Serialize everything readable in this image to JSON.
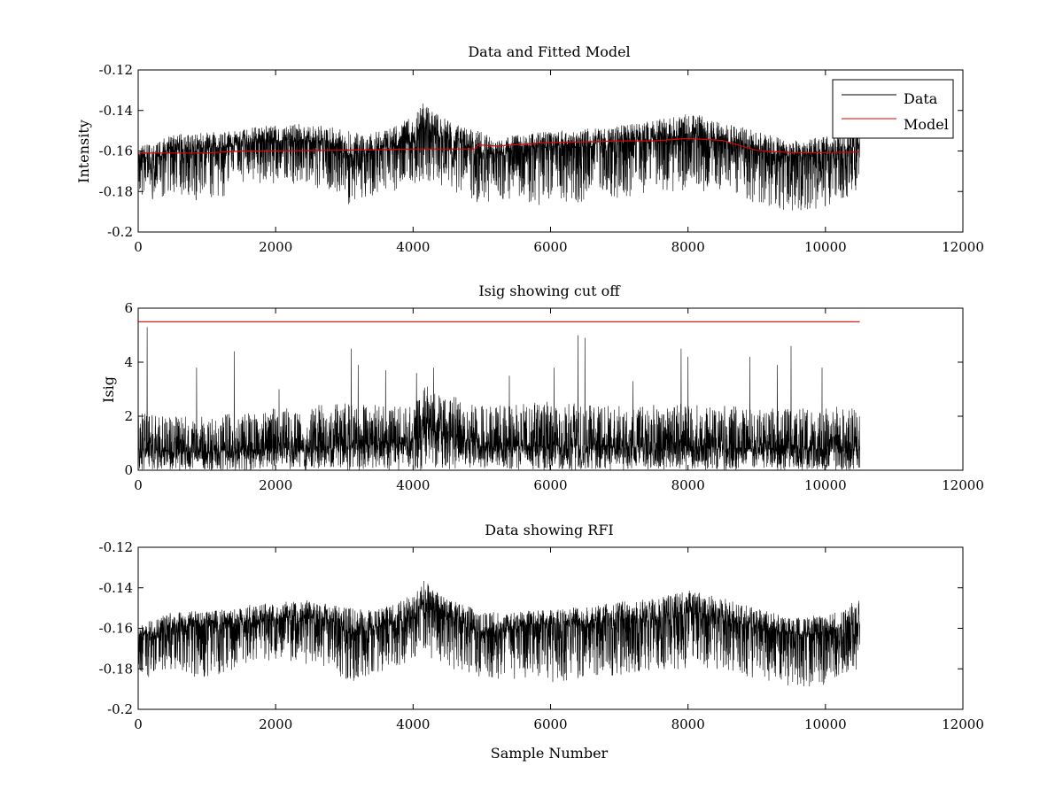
{
  "colors": {
    "data": "#000000",
    "model": "#e00000",
    "axes": "#000000",
    "background": "#ffffff"
  },
  "chart_data": [
    {
      "type": "line",
      "title": "Data and Fitted Model",
      "xlabel": "",
      "ylabel": "Intensity",
      "xlim": [
        0,
        12000
      ],
      "ylim": [
        -0.2,
        -0.12
      ],
      "y_reversed_tick_labels": true,
      "xticks": [
        0,
        2000,
        4000,
        6000,
        8000,
        10000,
        12000
      ],
      "yticks": [
        -0.2,
        -0.18,
        -0.16,
        -0.14,
        -0.12
      ],
      "xtick_labels": [
        "0",
        "2000",
        "4000",
        "6000",
        "8000",
        "10000",
        "12000"
      ],
      "ytick_labels": [
        "-0.2",
        "-0.18",
        "-0.16",
        "-0.14",
        "-0.12"
      ],
      "legend": {
        "position": "top-right",
        "entries": [
          "Data",
          "Model"
        ]
      },
      "series": [
        {
          "name": "Data",
          "kind": "noisy",
          "x_range": [
            0,
            10500
          ],
          "envelope": {
            "x": [
              0,
              200,
              500,
              900,
              1300,
              1700,
              2100,
              2500,
              2800,
              3100,
              3400,
              3700,
              4000,
              4150,
              4400,
              4700,
              4950,
              5300,
              5700,
              6100,
              6500,
              7000,
              7500,
              8000,
              8500,
              9000,
              9500,
              10000,
              10500
            ],
            "center": [
              -0.163,
              -0.164,
              -0.16,
              -0.159,
              -0.158,
              -0.156,
              -0.155,
              -0.155,
              -0.156,
              -0.163,
              -0.16,
              -0.157,
              -0.155,
              -0.148,
              -0.153,
              -0.156,
              -0.162,
              -0.161,
              -0.158,
              -0.158,
              -0.158,
              -0.156,
              -0.155,
              -0.152,
              -0.155,
              -0.16,
              -0.163,
              -0.162,
              -0.157
            ],
            "upper": [
              -0.158,
              -0.156,
              -0.152,
              -0.151,
              -0.15,
              -0.148,
              -0.147,
              -0.146,
              -0.148,
              -0.15,
              -0.151,
              -0.148,
              -0.143,
              -0.136,
              -0.143,
              -0.148,
              -0.15,
              -0.153,
              -0.151,
              -0.15,
              -0.149,
              -0.147,
              -0.145,
              -0.141,
              -0.145,
              -0.15,
              -0.155,
              -0.153,
              -0.145
            ],
            "lower": [
              -0.18,
              -0.186,
              -0.18,
              -0.185,
              -0.182,
              -0.176,
              -0.176,
              -0.178,
              -0.18,
              -0.188,
              -0.182,
              -0.18,
              -0.176,
              -0.175,
              -0.178,
              -0.182,
              -0.186,
              -0.185,
              -0.186,
              -0.188,
              -0.185,
              -0.183,
              -0.181,
              -0.18,
              -0.18,
              -0.186,
              -0.19,
              -0.188,
              -0.18
            ]
          }
        },
        {
          "name": "Model",
          "kind": "line",
          "x": [
            0,
            500,
            1000,
            1500,
            2000,
            2500,
            3000,
            3500,
            4000,
            4500,
            4900,
            4950,
            5200,
            5600,
            6000,
            6500,
            7000,
            7500,
            8000,
            8500,
            9000,
            9500,
            10000,
            10500
          ],
          "y": [
            -0.161,
            -0.161,
            -0.161,
            -0.16,
            -0.16,
            -0.1598,
            -0.1596,
            -0.1594,
            -0.159,
            -0.159,
            -0.159,
            -0.157,
            -0.1575,
            -0.1567,
            -0.1558,
            -0.1555,
            -0.155,
            -0.155,
            -0.1538,
            -0.1548,
            -0.1597,
            -0.1608,
            -0.1608,
            -0.1605
          ]
        }
      ]
    },
    {
      "type": "line",
      "title": "Isig showing cut off",
      "xlabel": "",
      "ylabel": "Isig",
      "xlim": [
        0,
        12000
      ],
      "ylim": [
        0,
        6
      ],
      "xticks": [
        0,
        2000,
        4000,
        6000,
        8000,
        10000,
        12000
      ],
      "yticks": [
        0,
        2,
        4,
        6
      ],
      "xtick_labels": [
        "0",
        "2000",
        "4000",
        "6000",
        "8000",
        "10000",
        "12000"
      ],
      "ytick_labels": [
        "0",
        "2",
        "4",
        "6"
      ],
      "series": [
        {
          "name": "Isig",
          "kind": "noisy",
          "x_range": [
            0,
            10500
          ],
          "envelope": {
            "x": [
              0,
              500,
              1000,
              2000,
              3000,
              4000,
              4200,
              5000,
              6000,
              7000,
              8000,
              9000,
              10000,
              10500
            ],
            "center": [
              0.8,
              0.7,
              0.7,
              0.8,
              0.9,
              1.0,
              1.6,
              0.9,
              0.9,
              0.9,
              0.9,
              0.8,
              0.8,
              0.9
            ],
            "upper": [
              2.2,
              2.0,
              2.0,
              2.3,
              2.5,
              2.4,
              3.2,
              2.4,
              2.6,
              2.4,
              2.5,
              2.3,
              2.3,
              2.5
            ],
            "lower": [
              0,
              0,
              0,
              0,
              0,
              0,
              0,
              0,
              0,
              0,
              0,
              0,
              0,
              0
            ]
          },
          "spikes": [
            {
              "x": 130,
              "y": 5.3
            },
            {
              "x": 850,
              "y": 3.8
            },
            {
              "x": 1400,
              "y": 4.4
            },
            {
              "x": 2050,
              "y": 3.0
            },
            {
              "x": 3100,
              "y": 4.5
            },
            {
              "x": 3200,
              "y": 3.9
            },
            {
              "x": 3600,
              "y": 3.7
            },
            {
              "x": 4050,
              "y": 3.6
            },
            {
              "x": 4300,
              "y": 3.8
            },
            {
              "x": 5400,
              "y": 3.5
            },
            {
              "x": 6050,
              "y": 3.8
            },
            {
              "x": 6400,
              "y": 5.0
            },
            {
              "x": 6500,
              "y": 4.9
            },
            {
              "x": 7200,
              "y": 3.3
            },
            {
              "x": 7900,
              "y": 4.5
            },
            {
              "x": 8000,
              "y": 4.2
            },
            {
              "x": 8900,
              "y": 4.2
            },
            {
              "x": 9300,
              "y": 3.9
            },
            {
              "x": 9500,
              "y": 4.6
            },
            {
              "x": 9950,
              "y": 3.8
            }
          ]
        },
        {
          "name": "Cut off",
          "kind": "line",
          "x": [
            0,
            10500
          ],
          "y": [
            5.5,
            5.5
          ]
        }
      ]
    },
    {
      "type": "line",
      "title": "Data showing RFI",
      "xlabel": "Sample Number",
      "ylabel": "",
      "xlim": [
        0,
        12000
      ],
      "ylim": [
        -0.2,
        -0.12
      ],
      "xticks": [
        0,
        2000,
        4000,
        6000,
        8000,
        10000,
        12000
      ],
      "yticks": [
        -0.2,
        -0.18,
        -0.16,
        -0.14,
        -0.12
      ],
      "xtick_labels": [
        "0",
        "2000",
        "4000",
        "6000",
        "8000",
        "10000",
        "12000"
      ],
      "ytick_labels": [
        "-0.2",
        "-0.18",
        "-0.16",
        "-0.14",
        "-0.12"
      ],
      "series": [
        {
          "name": "Data",
          "kind": "noisy",
          "x_range": [
            0,
            10500
          ],
          "envelope": {
            "x": [
              0,
              200,
              500,
              900,
              1300,
              1700,
              2100,
              2500,
              2800,
              3100,
              3400,
              3700,
              4000,
              4150,
              4400,
              4700,
              4950,
              5300,
              5700,
              6100,
              6500,
              7000,
              7500,
              8000,
              8500,
              9000,
              9500,
              10000,
              10500
            ],
            "center": [
              -0.163,
              -0.164,
              -0.16,
              -0.159,
              -0.158,
              -0.156,
              -0.155,
              -0.155,
              -0.156,
              -0.163,
              -0.16,
              -0.157,
              -0.155,
              -0.148,
              -0.153,
              -0.156,
              -0.162,
              -0.161,
              -0.158,
              -0.158,
              -0.158,
              -0.156,
              -0.155,
              -0.152,
              -0.155,
              -0.16,
              -0.163,
              -0.162,
              -0.157
            ],
            "upper": [
              -0.158,
              -0.156,
              -0.152,
              -0.151,
              -0.15,
              -0.148,
              -0.147,
              -0.146,
              -0.148,
              -0.15,
              -0.151,
              -0.148,
              -0.143,
              -0.136,
              -0.143,
              -0.148,
              -0.15,
              -0.153,
              -0.151,
              -0.15,
              -0.149,
              -0.147,
              -0.145,
              -0.141,
              -0.145,
              -0.15,
              -0.155,
              -0.153,
              -0.145
            ],
            "lower": [
              -0.18,
              -0.186,
              -0.18,
              -0.185,
              -0.182,
              -0.176,
              -0.176,
              -0.178,
              -0.18,
              -0.188,
              -0.182,
              -0.18,
              -0.176,
              -0.175,
              -0.178,
              -0.182,
              -0.186,
              -0.185,
              -0.186,
              -0.188,
              -0.185,
              -0.183,
              -0.181,
              -0.18,
              -0.18,
              -0.186,
              -0.19,
              -0.188,
              -0.18
            ]
          }
        }
      ]
    }
  ]
}
